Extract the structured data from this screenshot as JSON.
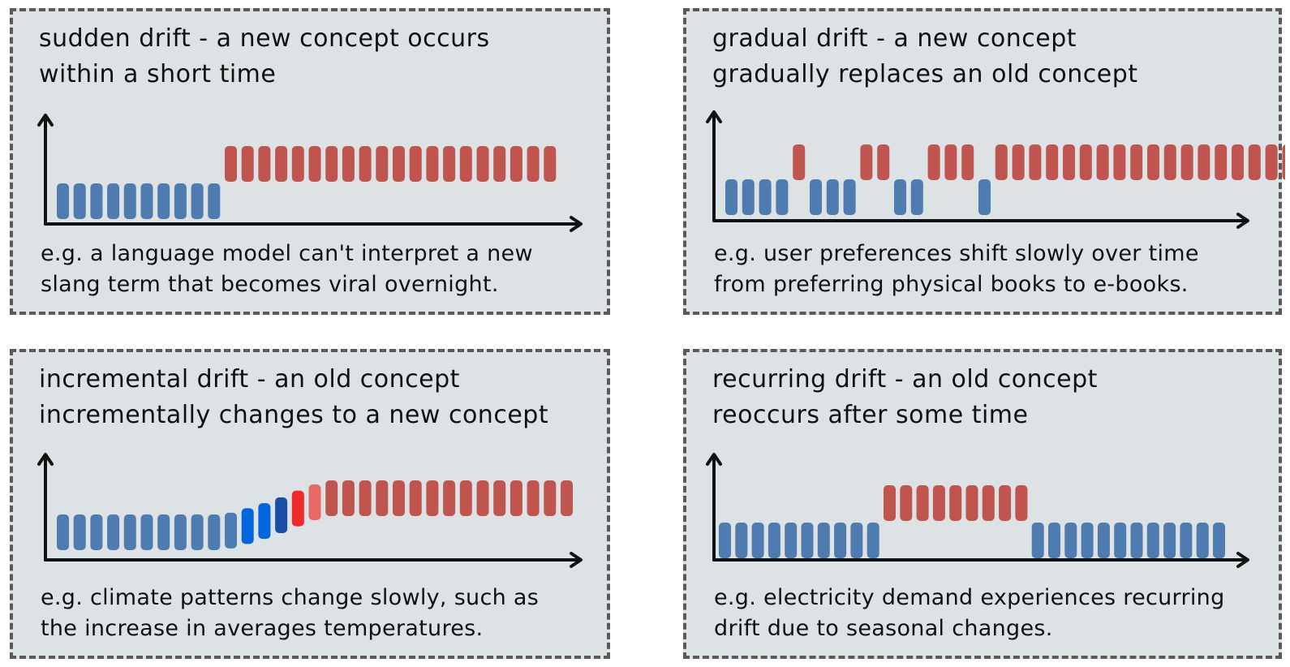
{
  "colors": {
    "old": "#4f7cb0",
    "new": "#c0554f",
    "bright_blue": "#0066dd",
    "dark_blue": "#1a4fa8",
    "bright_red": "#ee2a2a",
    "light_red": "#e86a68",
    "axis": "#111111",
    "panel": "#dde2e4"
  },
  "panels": [
    {
      "title_lines": [
        "sudden drift - a new concept occurs",
        "within a short time"
      ],
      "example_lines": [
        "e.g. a language model can't interpret a new",
        "slang term that becomes viral overnight."
      ],
      "bars": [
        "old",
        "old",
        "old",
        "old",
        "old",
        "old",
        "old",
        "old",
        "old",
        "old",
        "new",
        "new",
        "new",
        "new",
        "new",
        "new",
        "new",
        "new",
        "new",
        "new",
        "new",
        "new",
        "new",
        "new",
        "new",
        "new",
        "new",
        "new",
        "new",
        "new"
      ]
    },
    {
      "title_lines": [
        "gradual drift - a new concept",
        "gradually replaces an old concept"
      ],
      "example_lines": [
        "e.g. user preferences shift slowly over time",
        "from preferring physical books to e-books."
      ],
      "bars": [
        "old",
        "old",
        "old",
        "old",
        "new",
        "old",
        "old",
        "old",
        "new",
        "new",
        "old",
        "old",
        "new",
        "new",
        "new",
        "old",
        "new",
        "new",
        "new",
        "new",
        "new",
        "new",
        "new",
        "new",
        "new",
        "new",
        "new",
        "new",
        "new",
        "new",
        "new",
        "new",
        "new",
        "new",
        "new"
      ]
    },
    {
      "title_lines": [
        "incremental drift - an old concept",
        "incrementally changes to a new concept"
      ],
      "example_lines": [
        "e.g. climate patterns change slowly, such as",
        "the increase in averages temperatures."
      ],
      "bars": [
        "old",
        "old",
        "old",
        "old",
        "old",
        "old",
        "old",
        "old",
        "old",
        "old",
        "inc1",
        "inc2",
        "inc3",
        "inc4",
        "inc5",
        "inc6",
        "new",
        "new",
        "new",
        "new",
        "new",
        "new",
        "new",
        "new",
        "new",
        "new",
        "new",
        "new",
        "new",
        "new",
        "new"
      ]
    },
    {
      "title_lines": [
        "recurring drift - an old concept",
        "reoccurs after some time"
      ],
      "example_lines": [
        "e.g. electricity demand experiences recurring",
        "drift due to seasonal changes."
      ],
      "bars": [
        "old",
        "old",
        "old",
        "old",
        "old",
        "old",
        "old",
        "old",
        "old",
        "old",
        "new",
        "new",
        "new",
        "new",
        "new",
        "new",
        "new",
        "new",
        "new",
        "old",
        "old",
        "old",
        "old",
        "old",
        "old",
        "old",
        "old",
        "old",
        "old",
        "old",
        "old"
      ]
    }
  ]
}
